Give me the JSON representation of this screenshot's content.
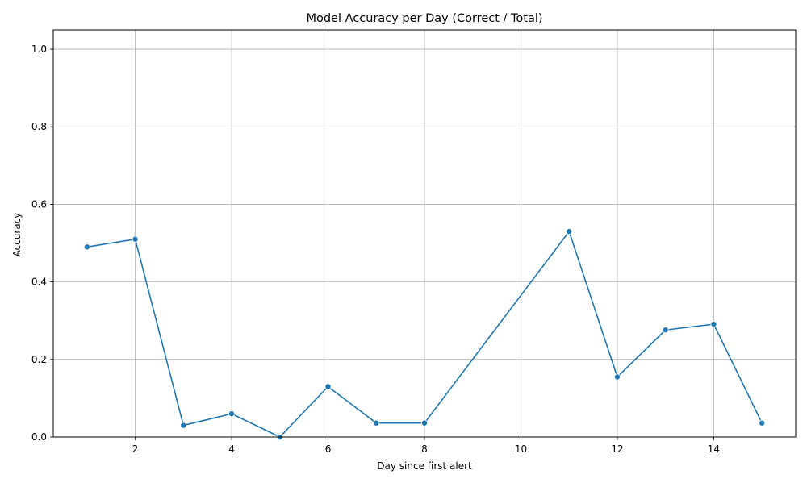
{
  "chart_data": {
    "type": "line",
    "title": "Model Accuracy per Day (Correct / Total)",
    "xlabel": "Day since first alert",
    "ylabel": "Accuracy",
    "xlim": [
      0.3,
      15.7
    ],
    "ylim": [
      0,
      1.05
    ],
    "xticks": [
      2,
      4,
      6,
      8,
      10,
      12,
      14
    ],
    "yticks": [
      0.0,
      0.2,
      0.4,
      0.6,
      0.8,
      1.0
    ],
    "xtick_labels": [
      "2",
      "4",
      "6",
      "8",
      "10",
      "12",
      "14"
    ],
    "ytick_labels": [
      "0.0",
      "0.2",
      "0.4",
      "0.6",
      "0.8",
      "1.0"
    ],
    "grid": true,
    "series": [
      {
        "color": "#1f77b4",
        "marker": "circle",
        "x": [
          1,
          2,
          3,
          4,
          5,
          6,
          7,
          8,
          11,
          12,
          13,
          14,
          15
        ],
        "y": [
          0.49,
          0.51,
          0.03,
          0.06,
          0.0,
          0.13,
          0.036,
          0.036,
          0.53,
          0.155,
          0.276,
          0.291,
          0.036
        ]
      }
    ]
  }
}
